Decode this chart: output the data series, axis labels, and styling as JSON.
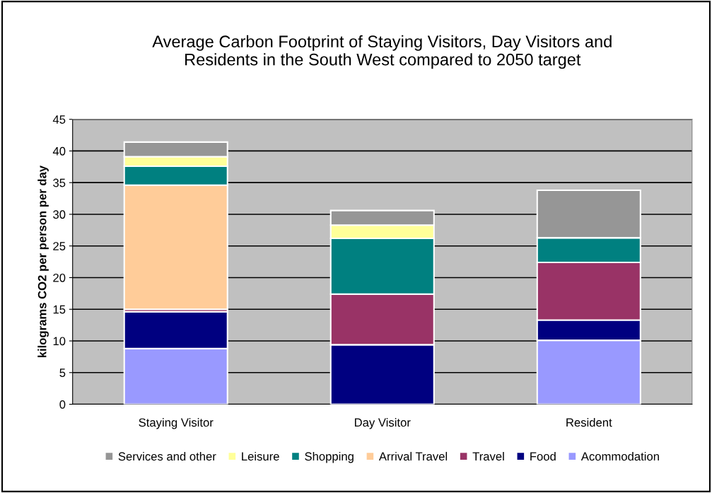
{
  "chart_data": {
    "type": "bar",
    "stacked": true,
    "title": "Average Carbon Footprint of Staying Visitors, Day Visitors and\nResidents in the South West compared to 2050 target",
    "ylabel": "kilograms CO2 per person per day",
    "categories": [
      "Staying Visitor",
      "Day Visitor",
      "Resident"
    ],
    "series": [
      {
        "name": "Acommodation",
        "color": "#9999ff",
        "values": [
          8.8,
          0,
          10.1
        ]
      },
      {
        "name": "Food",
        "color": "#000080",
        "values": [
          5.8,
          9.4,
          3.2
        ]
      },
      {
        "name": "Travel",
        "color": "#993366",
        "values": [
          0.4,
          8.0,
          9.1
        ]
      },
      {
        "name": "Arrival Travel",
        "color": "#ffcc99",
        "values": [
          19.6,
          0,
          0
        ]
      },
      {
        "name": "Shopping",
        "color": "#008080",
        "values": [
          3.0,
          8.8,
          3.9
        ]
      },
      {
        "name": "Leisure",
        "color": "#ffff99",
        "values": [
          1.5,
          2.1,
          0
        ]
      },
      {
        "name": "Services and other",
        "color": "#969696",
        "values": [
          2.3,
          2.3,
          7.5
        ]
      }
    ],
    "ylim": [
      0,
      45
    ],
    "yticks": [
      0,
      5,
      10,
      15,
      20,
      25,
      30,
      35,
      40,
      45
    ],
    "grid": "y",
    "legend": "bottom"
  }
}
